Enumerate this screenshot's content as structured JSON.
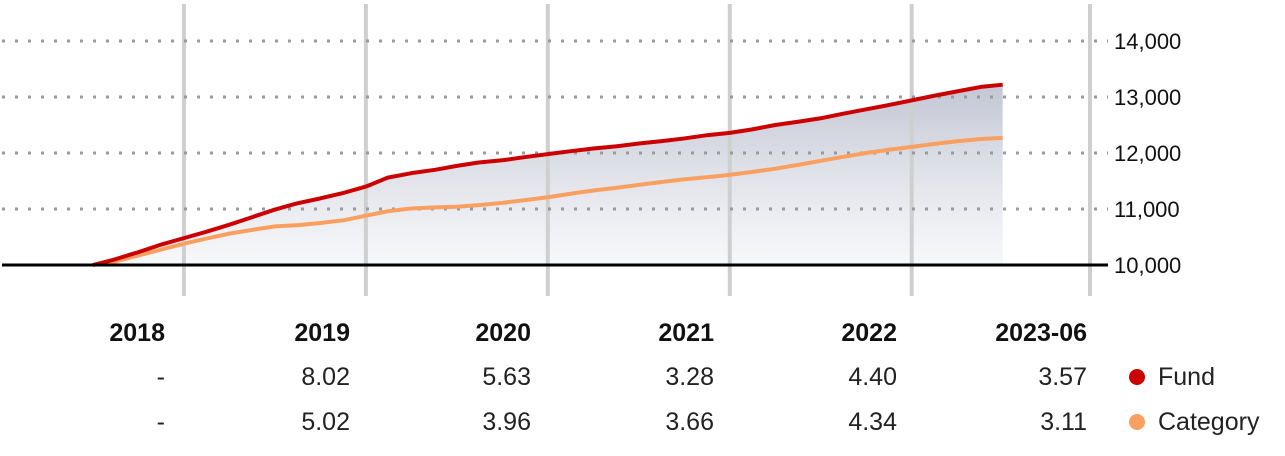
{
  "chart_data": {
    "type": "line",
    "yticks": [
      "14,000",
      "13,000",
      "12,000",
      "11,000",
      "10,000"
    ],
    "ylim": [
      10000,
      14000
    ],
    "baseline": 10000,
    "grid": true,
    "legend_position": "bottom-right",
    "year_labels": [
      "2018",
      "2019",
      "2020",
      "2021",
      "2022",
      "2023-06"
    ],
    "series": [
      {
        "name": "Fund",
        "color": "#cc0000",
        "x": [
          2018.5,
          2018.62,
          2018.75,
          2018.88,
          2019.0,
          2019.12,
          2019.25,
          2019.38,
          2019.5,
          2019.62,
          2019.75,
          2019.88,
          2020.0,
          2020.12,
          2020.25,
          2020.38,
          2020.5,
          2020.62,
          2020.75,
          2020.88,
          2021.0,
          2021.12,
          2021.25,
          2021.38,
          2021.5,
          2021.62,
          2021.75,
          2021.88,
          2022.0,
          2022.12,
          2022.25,
          2022.38,
          2022.5,
          2022.62,
          2022.75,
          2022.88,
          2023.0,
          2023.12,
          2023.25,
          2023.38,
          2023.5
        ],
        "y": [
          10000,
          10100,
          10230,
          10370,
          10480,
          10590,
          10720,
          10860,
          10990,
          11100,
          11190,
          11290,
          11400,
          11560,
          11640,
          11700,
          11770,
          11830,
          11870,
          11930,
          11980,
          12030,
          12080,
          12120,
          12170,
          12210,
          12260,
          12320,
          12360,
          12420,
          12500,
          12560,
          12620,
          12700,
          12780,
          12860,
          12940,
          13020,
          13100,
          13180,
          13220
        ]
      },
      {
        "name": "Category",
        "color": "#f9a060",
        "x": [
          2018.5,
          2018.62,
          2018.75,
          2018.88,
          2019.0,
          2019.12,
          2019.25,
          2019.38,
          2019.5,
          2019.62,
          2019.75,
          2019.88,
          2020.0,
          2020.12,
          2020.25,
          2020.38,
          2020.5,
          2020.62,
          2020.75,
          2020.88,
          2021.0,
          2021.12,
          2021.25,
          2021.38,
          2021.5,
          2021.62,
          2021.75,
          2021.88,
          2022.0,
          2022.12,
          2022.25,
          2022.38,
          2022.5,
          2022.62,
          2022.75,
          2022.88,
          2023.0,
          2023.12,
          2023.25,
          2023.38,
          2023.5
        ],
        "y": [
          10000,
          10060,
          10170,
          10280,
          10380,
          10470,
          10560,
          10630,
          10690,
          10710,
          10750,
          10800,
          10880,
          10960,
          11010,
          11030,
          11040,
          11070,
          11110,
          11160,
          11210,
          11270,
          11330,
          11380,
          11430,
          11480,
          11530,
          11570,
          11610,
          11660,
          11720,
          11790,
          11860,
          11930,
          12000,
          12060,
          12110,
          12160,
          12210,
          12250,
          12270
        ]
      }
    ]
  },
  "table": {
    "rows": [
      {
        "series": "Fund",
        "values": [
          "-",
          "8.02",
          "5.63",
          "3.28",
          "4.40",
          "3.57"
        ]
      },
      {
        "series": "Category",
        "values": [
          "-",
          "5.02",
          "3.96",
          "3.66",
          "4.34",
          "3.11"
        ]
      }
    ]
  },
  "legend": [
    {
      "label": "Fund",
      "color": "#cc0000"
    },
    {
      "label": "Category",
      "color": "#f9a060"
    }
  ]
}
